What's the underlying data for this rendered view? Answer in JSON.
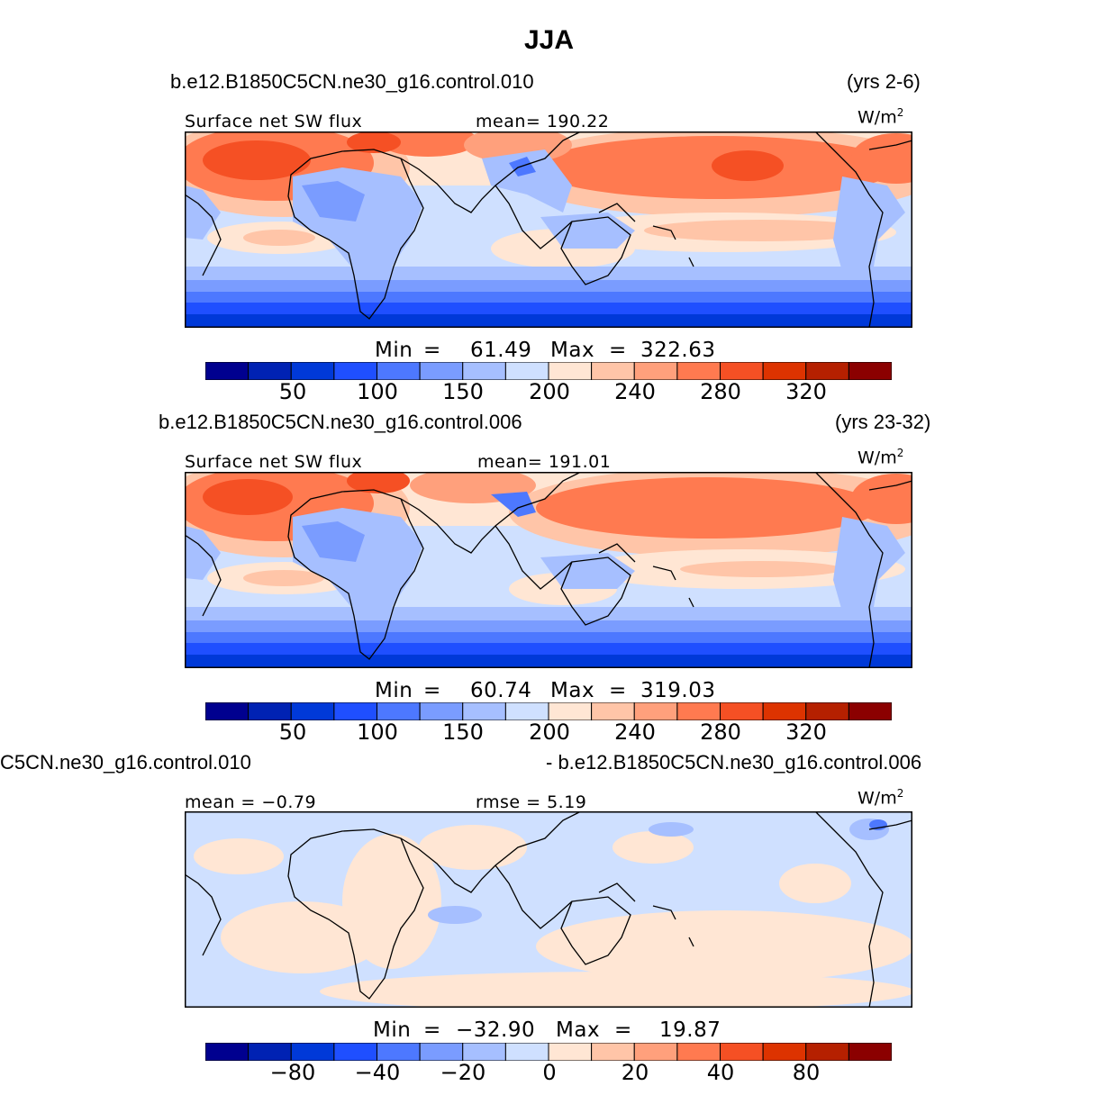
{
  "title": "JJA",
  "panels": [
    {
      "case": "b.e12.B1850C5CN.ne30_g16.control.010",
      "years": "(yrs 2-6)",
      "field": "Surface net SW flux",
      "stat1": "mean= 190.22",
      "stat2": "",
      "units": "W/m",
      "units_exp": "2",
      "min_label": "Min",
      "min_value": "61.49",
      "max_label": "Max",
      "max_value": "322.63",
      "colorbar_ticks": [
        "50",
        "100",
        "150",
        "200",
        "240",
        "280",
        "320"
      ]
    },
    {
      "case": "b.e12.B1850C5CN.ne30_g16.control.006",
      "years": "(yrs 23-32)",
      "field": "Surface net SW flux",
      "stat1": "mean= 191.01",
      "stat2": "",
      "units": "W/m",
      "units_exp": "2",
      "min_label": "Min",
      "min_value": "60.74",
      "max_label": "Max",
      "max_value": "319.03",
      "colorbar_ticks": [
        "50",
        "100",
        "150",
        "200",
        "240",
        "280",
        "320"
      ]
    },
    {
      "case_left": "C5CN.ne30_g16.control.010",
      "case_right": "- b.e12.B1850C5CN.ne30_g16.control.006",
      "stat1": "mean =   −0.79",
      "stat2": "rmse =    5.19",
      "units": "W/m",
      "units_exp": "2",
      "min_label": "Min",
      "min_value": "−32.90",
      "max_label": "Max",
      "max_value": "19.87",
      "colorbar_ticks": [
        "−80",
        "−40",
        "−20",
        "0",
        "20",
        "40",
        "80"
      ]
    }
  ],
  "colors": {
    "palette": [
      "#00008f",
      "#0022b3",
      "#0039d8",
      "#1f4fff",
      "#4d78ff",
      "#7a9cff",
      "#a6bfff",
      "#cfe0ff",
      "#ffe6d4",
      "#ffc5a8",
      "#ffa07c",
      "#ff7a50",
      "#f55024",
      "#dd3300",
      "#b52000",
      "#8b0000"
    ],
    "land_outline": "#000000"
  }
}
